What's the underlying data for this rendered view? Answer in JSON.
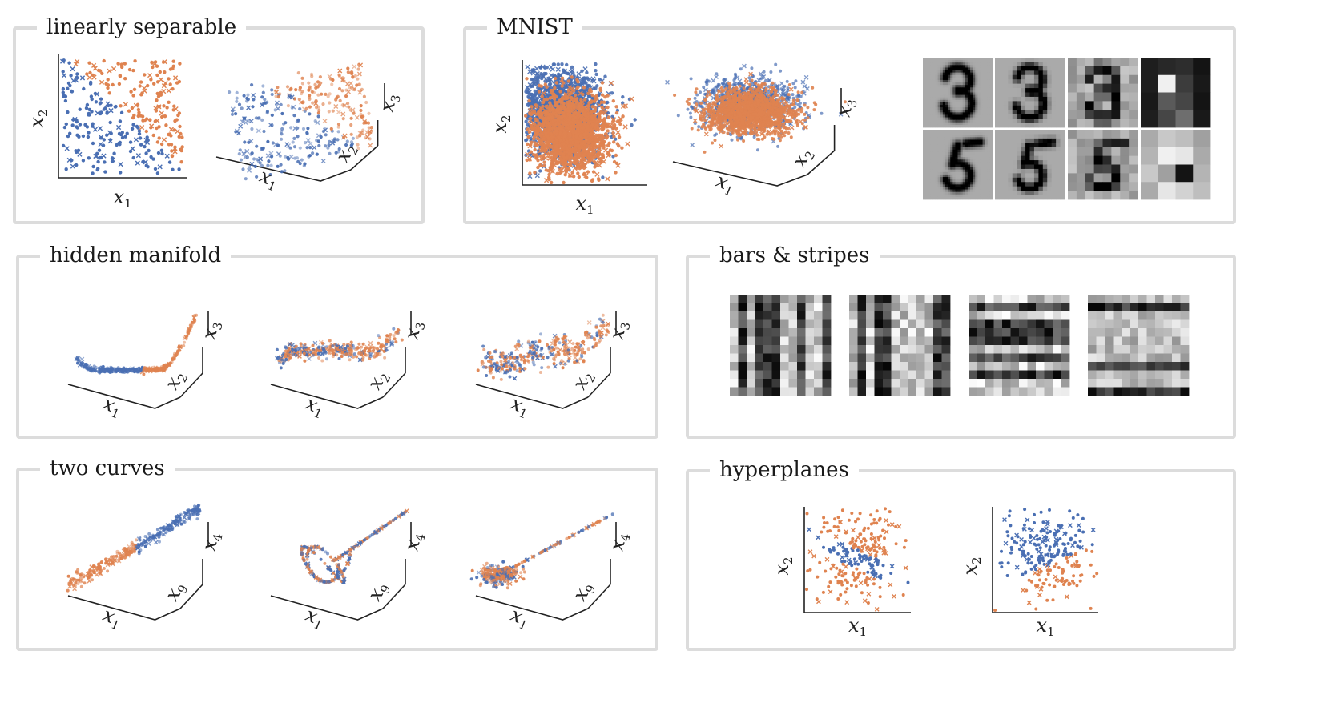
{
  "colors": {
    "blue": "#4a6fb3",
    "orange": "#df8350",
    "frame": "#dcdcdc",
    "axis": "#222222"
  },
  "panels": {
    "linearly_separable": {
      "title": "linearly separable"
    },
    "mnist": {
      "title": "MNIST"
    },
    "hidden_manifold": {
      "title": "hidden manifold"
    },
    "bars_stripes": {
      "title": "bars & stripes"
    },
    "two_curves": {
      "title": "two curves"
    },
    "hyperplanes": {
      "title": "hyperplanes"
    }
  },
  "axis_labels": {
    "x1": {
      "var": "x",
      "sub": "1"
    },
    "x2": {
      "var": "x",
      "sub": "2"
    },
    "x3": {
      "var": "x",
      "sub": "3"
    },
    "x4": {
      "var": "x",
      "sub": "4"
    },
    "x9": {
      "var": "x",
      "sub": "9"
    }
  },
  "mnist_digits": {
    "top": "3",
    "bottom": "5",
    "resolutions": [
      "28x28",
      "16x16",
      "8x8",
      "4x4"
    ]
  },
  "bars_stripes_patterns": [
    "vertical bars",
    "vertical bars",
    "horizontal stripes",
    "horizontal stripes"
  ]
}
